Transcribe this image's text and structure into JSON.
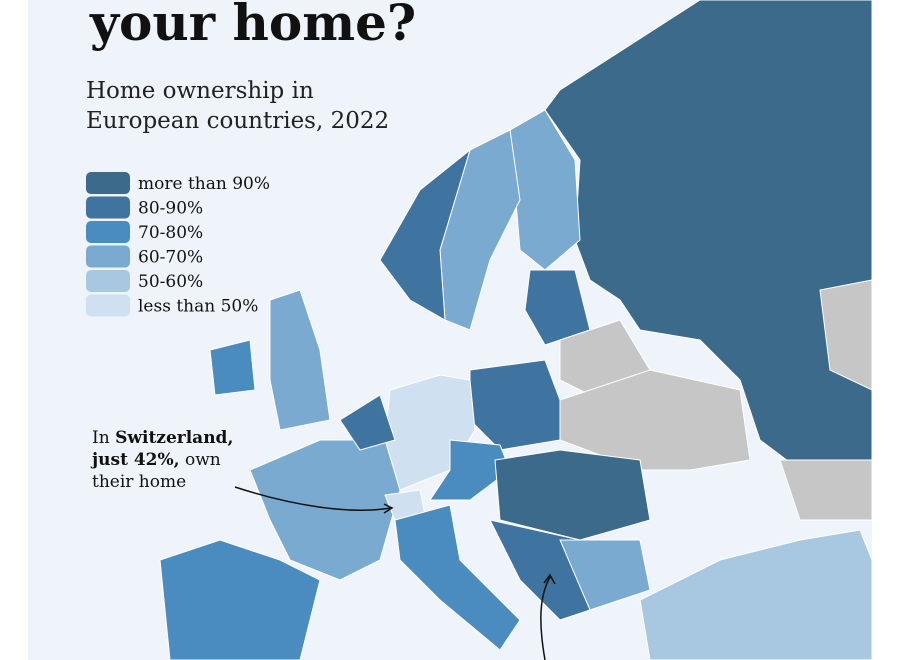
{
  "title": "your home?",
  "subtitle": [
    "Home ownership in",
    "European countries, 2022"
  ],
  "legend": [
    {
      "label": "more than 90%",
      "color": "#3b6a8a"
    },
    {
      "label": "80-90%",
      "color": "#3f74a0"
    },
    {
      "label": "70-80%",
      "color": "#4a8cbf"
    },
    {
      "label": "60-70%",
      "color": "#7aaad0"
    },
    {
      "label": "50-60%",
      "color": "#a8c8e2"
    },
    {
      "label": "less than 50%",
      "color": "#cfe0f0"
    }
  ],
  "no_data_color": "#c6c6c6",
  "annotation": [
    [
      {
        "text": "In "
      },
      {
        "text": "Switzerland,",
        "bold": true
      }
    ],
    [
      {
        "text": "just 42%,",
        "bold": true
      },
      {
        "text": " own"
      }
    ],
    [
      {
        "text": "their home"
      }
    ]
  ]
}
